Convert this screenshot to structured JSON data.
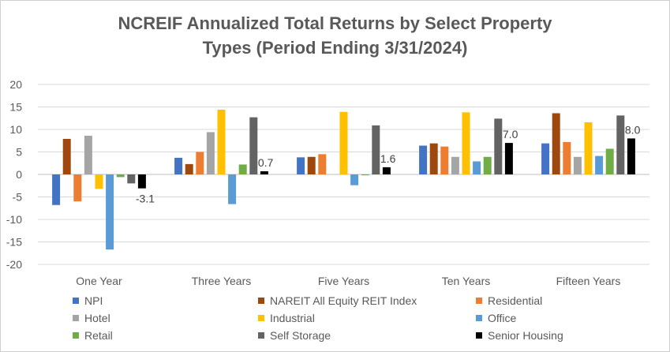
{
  "chart_data": {
    "type": "bar",
    "title_line1": "NCREIF Annualized Total Returns by Select Property",
    "title_line2": "Types (Period Ending 3/31/2024)",
    "xlabel": "",
    "ylabel": "",
    "ylim": [
      -20,
      20
    ],
    "yticks": [
      20,
      15,
      10,
      5,
      0,
      -5,
      -10,
      -15,
      -20
    ],
    "grid": true,
    "legend_position": "bottom",
    "categories": [
      "One Year",
      "Three Years",
      "Five Years",
      "Ten Years",
      "Fifteen Years"
    ],
    "series": [
      {
        "name": "NPI",
        "color": "#4472C4",
        "values": [
          -6.8,
          3.7,
          3.8,
          6.4,
          6.9
        ]
      },
      {
        "name": "NAREIT All Equity REIT Index",
        "color": "#9E480E",
        "values": [
          7.9,
          2.3,
          3.9,
          6.9,
          13.6
        ]
      },
      {
        "name": "Residential",
        "color": "#ED7D31",
        "values": [
          -6.0,
          5.0,
          4.5,
          6.2,
          7.2
        ]
      },
      {
        "name": "Hotel",
        "color": "#A5A5A5",
        "values": [
          8.6,
          9.4,
          0.0,
          3.9,
          3.9
        ]
      },
      {
        "name": "Industrial",
        "color": "#FFC000",
        "values": [
          -3.2,
          14.4,
          13.9,
          13.8,
          11.6
        ]
      },
      {
        "name": "Office",
        "color": "#5B9BD5",
        "values": [
          -16.7,
          -6.6,
          -2.4,
          2.9,
          4.1
        ]
      },
      {
        "name": "Retail",
        "color": "#70AD47",
        "values": [
          -0.6,
          2.2,
          -0.2,
          3.9,
          5.7
        ]
      },
      {
        "name": "Self Storage",
        "color": "#636363",
        "values": [
          -2.0,
          12.7,
          10.9,
          12.4,
          13.1
        ]
      },
      {
        "name": "Senior Housing",
        "color": "#000000",
        "values": [
          -3.1,
          0.7,
          1.6,
          7.0,
          8.0
        ]
      }
    ],
    "data_labels": [
      {
        "series": "Senior Housing",
        "category": "One Year",
        "text": "-3.1"
      },
      {
        "series": "Senior Housing",
        "category": "Three Years",
        "text": "0.7"
      },
      {
        "series": "Senior Housing",
        "category": "Five Years",
        "text": "1.6"
      },
      {
        "series": "Senior Housing",
        "category": "Ten Years",
        "text": "7.0"
      },
      {
        "series": "Senior Housing",
        "category": "Fifteen Years",
        "text": "8.0"
      }
    ]
  }
}
